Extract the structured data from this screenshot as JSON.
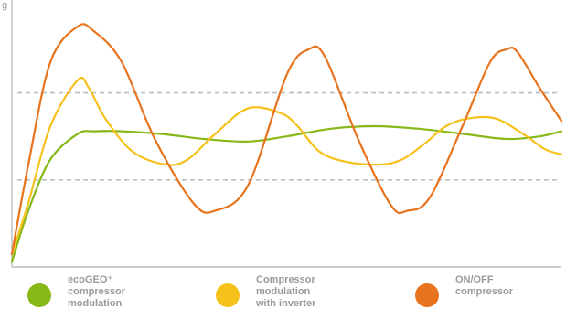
{
  "chart_data": {
    "type": "line",
    "title": "",
    "xlabel": "",
    "ylabel": "",
    "y_tick_label": "g",
    "xlim": [
      0,
      100
    ],
    "ylim": [
      0,
      100
    ],
    "reference_lines": [
      {
        "y": 68,
        "style": "dashed",
        "color": "#bdbdbd"
      },
      {
        "y": 34,
        "style": "dashed",
        "color": "#bdbdbd"
      }
    ],
    "legend_position": "bottom",
    "series": [
      {
        "name_lines": [
          "ecoGEO⁺",
          "compressor",
          "modulation"
        ],
        "color": "#86b817",
        "x": [
          0,
          3,
          7,
          12,
          15,
          20,
          27,
          35,
          43,
          50,
          58,
          66,
          74,
          82,
          90,
          96,
          100
        ],
        "y": [
          2,
          22,
          42,
          52,
          53,
          53,
          52,
          50,
          49,
          51,
          54,
          55,
          54,
          52,
          50,
          51,
          53
        ]
      },
      {
        "name_lines": [
          "Compressor",
          "modulation",
          "with inverter"
        ],
        "color": "#f7c11b",
        "x": [
          0,
          3,
          7,
          12,
          14,
          17,
          22,
          28,
          32,
          37,
          43,
          49,
          52,
          56,
          61,
          67,
          71,
          75,
          79,
          83,
          88,
          93,
          97,
          100
        ],
        "y": [
          5,
          25,
          55,
          73,
          70,
          58,
          45,
          40,
          42,
          52,
          62,
          60,
          55,
          45,
          41,
          40,
          42,
          48,
          55,
          58,
          58,
          52,
          46,
          44
        ]
      },
      {
        "name_lines": [
          "ON/OFF",
          "compressor"
        ],
        "color": "#e8731d",
        "x": [
          0,
          3,
          7,
          12,
          15,
          20,
          26,
          33,
          37,
          43,
          50,
          54,
          57,
          63,
          69,
          72,
          76,
          82,
          87,
          90,
          92,
          96,
          100
        ],
        "y": [
          5,
          40,
          80,
          94,
          92,
          80,
          50,
          25,
          22,
          32,
          75,
          85,
          82,
          50,
          24,
          22,
          27,
          55,
          80,
          85,
          84,
          70,
          57
        ]
      }
    ]
  }
}
